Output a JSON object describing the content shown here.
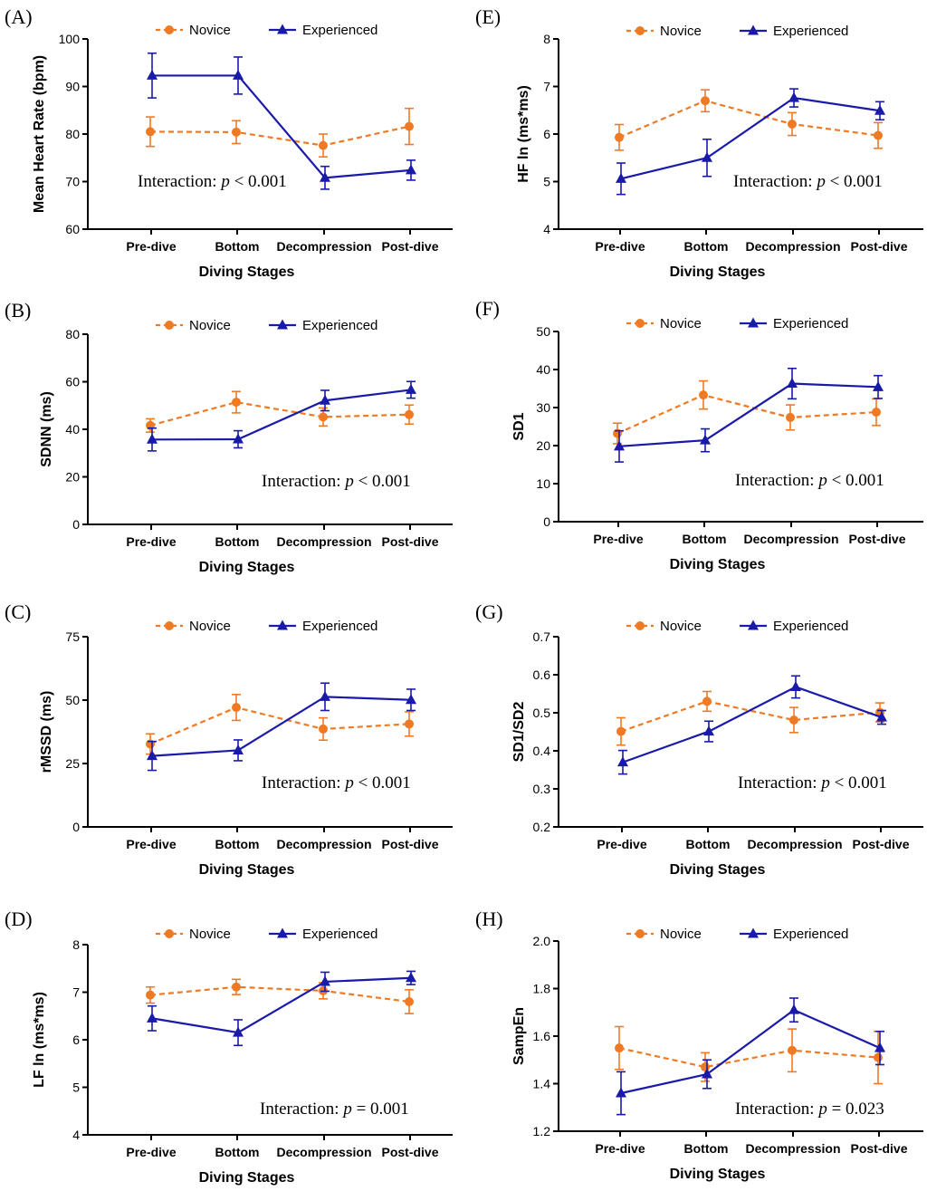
{
  "chart_data": [
    {
      "panel": "(A)",
      "type": "line",
      "categories": [
        "Pre-dive",
        "Bottom",
        "Decompression",
        "Post-dive"
      ],
      "xlabel": "Diving Stages",
      "ylabel": "Mean Heart Rate (bpm)",
      "ylim": [
        60,
        100
      ],
      "yticks": [
        60,
        70,
        80,
        90,
        100
      ],
      "series": [
        {
          "name": "Novice",
          "values": [
            80.5,
            80.4,
            77.6,
            81.6
          ],
          "errors": [
            3.1,
            2.4,
            2.4,
            3.8
          ]
        },
        {
          "name": "Experienced",
          "values": [
            92.3,
            92.3,
            70.8,
            72.4
          ],
          "errors": [
            4.7,
            3.9,
            2.4,
            2.1
          ]
        }
      ],
      "annotation": {
        "prefix": "Interaction: ",
        "pvar": "p",
        "rest": " < 0.001"
      }
    },
    {
      "panel": "(E)",
      "type": "line",
      "categories": [
        "Pre-dive",
        "Bottom",
        "Decompression",
        "Post-dive"
      ],
      "xlabel": "Diving Stages",
      "ylabel": "HF ln (ms*ms)",
      "ylim": [
        4,
        8
      ],
      "yticks": [
        4,
        5,
        6,
        7,
        8
      ],
      "series": [
        {
          "name": "Novice",
          "values": [
            5.93,
            6.7,
            6.21,
            5.97
          ],
          "errors": [
            0.27,
            0.23,
            0.24,
            0.27
          ]
        },
        {
          "name": "Experienced",
          "values": [
            5.06,
            5.5,
            6.76,
            6.49
          ],
          "errors": [
            0.33,
            0.39,
            0.19,
            0.19
          ]
        }
      ],
      "annotation": {
        "prefix": "Interaction: ",
        "pvar": "p",
        "rest": " < 0.001"
      }
    },
    {
      "panel": "(B)",
      "type": "line",
      "categories": [
        "Pre-dive",
        "Bottom",
        "Decompression",
        "Post-dive"
      ],
      "xlabel": "Diving Stages",
      "ylabel": "SDNN (ms)",
      "ylim": [
        0,
        80
      ],
      "yticks": [
        0,
        20,
        40,
        60,
        80
      ],
      "series": [
        {
          "name": "Novice",
          "values": [
            41.6,
            51.4,
            45.2,
            46.2
          ],
          "errors": [
            2.8,
            4.5,
            3.8,
            4.0
          ]
        },
        {
          "name": "Experienced",
          "values": [
            35.7,
            35.8,
            52.1,
            56.6
          ],
          "errors": [
            4.8,
            3.6,
            4.3,
            3.5
          ]
        }
      ],
      "annotation": {
        "prefix": "Interaction: ",
        "pvar": "p",
        "rest": " < 0.001"
      }
    },
    {
      "panel": "(F)",
      "type": "line",
      "categories": [
        "Pre-dive",
        "Bottom",
        "Decompression",
        "Post-dive"
      ],
      "xlabel": "Diving Stages",
      "ylabel": "SD1",
      "ylim": [
        0,
        50
      ],
      "yticks": [
        0,
        10,
        20,
        30,
        40,
        50
      ],
      "series": [
        {
          "name": "Novice",
          "values": [
            23.2,
            33.3,
            27.4,
            28.8
          ],
          "errors": [
            2.7,
            3.7,
            3.3,
            3.5
          ]
        },
        {
          "name": "Experienced",
          "values": [
            19.8,
            21.4,
            36.3,
            35.4
          ],
          "errors": [
            4.1,
            3.0,
            4.0,
            3.0
          ]
        }
      ],
      "annotation": {
        "prefix": "Interaction: ",
        "pvar": "p",
        "rest": " < 0.001"
      }
    },
    {
      "panel": "(C)",
      "type": "line",
      "categories": [
        "Pre-dive",
        "Bottom",
        "Decompression",
        "Post-dive"
      ],
      "xlabel": "Diving Stages",
      "ylabel": "rMSSD (ms)",
      "ylim": [
        0,
        75
      ],
      "yticks": [
        0,
        25,
        50,
        75
      ],
      "series": [
        {
          "name": "Novice",
          "values": [
            32.7,
            47.1,
            38.6,
            40.6
          ],
          "errors": [
            4.0,
            5.1,
            4.4,
            4.8
          ]
        },
        {
          "name": "Experienced",
          "values": [
            28.0,
            30.2,
            51.3,
            50.1
          ],
          "errors": [
            5.7,
            4.1,
            5.4,
            4.2
          ]
        }
      ],
      "annotation": {
        "prefix": "Interaction: ",
        "pvar": "p",
        "rest": " < 0.001"
      }
    },
    {
      "panel": "(G)",
      "type": "line",
      "categories": [
        "Pre-dive",
        "Bottom",
        "Decompression",
        "Post-dive"
      ],
      "xlabel": "Diving Stages",
      "ylabel": "SD1/SD2",
      "ylim": [
        0.2,
        0.7
      ],
      "yticks": [
        0.2,
        0.3,
        0.4,
        0.5,
        0.6,
        0.7
      ],
      "series": [
        {
          "name": "Novice",
          "values": [
            0.451,
            0.53,
            0.481,
            0.501
          ],
          "errors": [
            0.036,
            0.026,
            0.033,
            0.025
          ]
        },
        {
          "name": "Experienced",
          "values": [
            0.37,
            0.451,
            0.568,
            0.488
          ],
          "errors": [
            0.031,
            0.027,
            0.029,
            0.018
          ]
        }
      ],
      "annotation": {
        "prefix": "Interaction: ",
        "pvar": "p",
        "rest": " < 0.001"
      }
    },
    {
      "panel": "(D)",
      "type": "line",
      "categories": [
        "Pre-dive",
        "Bottom",
        "Decompression",
        "Post-dive"
      ],
      "xlabel": "Diving Stages",
      "ylabel": "LF ln (ms*ms)",
      "ylim": [
        4,
        8
      ],
      "yticks": [
        4,
        5,
        6,
        7,
        8
      ],
      "series": [
        {
          "name": "Novice",
          "values": [
            6.94,
            7.11,
            7.03,
            6.8
          ],
          "errors": [
            0.17,
            0.16,
            0.17,
            0.25
          ]
        },
        {
          "name": "Experienced",
          "values": [
            6.45,
            6.15,
            7.22,
            7.3
          ],
          "errors": [
            0.26,
            0.27,
            0.2,
            0.14
          ]
        }
      ],
      "annotation": {
        "prefix": "Interaction: ",
        "pvar": "p",
        "rest": " = 0.001"
      }
    },
    {
      "panel": "(H)",
      "type": "line",
      "categories": [
        "Pre-dive",
        "Bottom",
        "Decompression",
        "Post-dive"
      ],
      "xlabel": "Diving Stages",
      "ylabel": "SampEn",
      "ylim": [
        1.2,
        2.0
      ],
      "yticks": [
        1.2,
        1.4,
        1.6,
        1.8,
        2.0
      ],
      "series": [
        {
          "name": "Novice",
          "values": [
            1.55,
            1.47,
            1.54,
            1.51
          ],
          "errors": [
            0.09,
            0.06,
            0.09,
            0.11
          ]
        },
        {
          "name": "Experienced",
          "values": [
            1.36,
            1.44,
            1.71,
            1.55
          ],
          "errors": [
            0.09,
            0.06,
            0.05,
            0.07
          ]
        }
      ],
      "annotation": {
        "prefix": "Interaction: ",
        "pvar": "p",
        "rest": " = 0.023"
      }
    }
  ],
  "colors": {
    "novice": "#F07A24",
    "experienced": "#1A1AAA",
    "axis": "#000000"
  }
}
